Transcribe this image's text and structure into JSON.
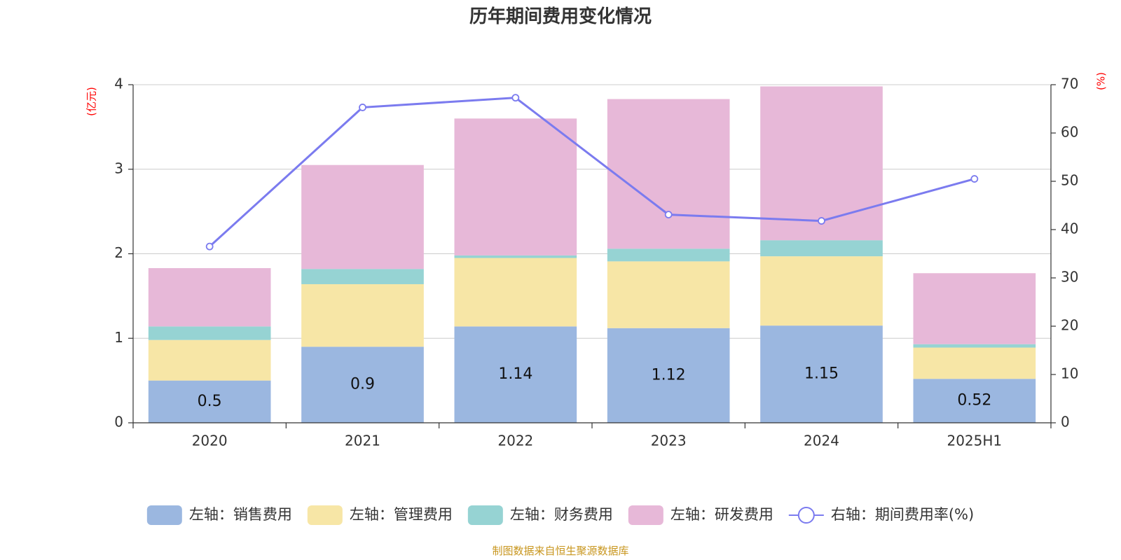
{
  "chart_data": {
    "type": "bar",
    "title": "历年期间费用变化情况",
    "left_unit": "(亿元)",
    "right_unit": "(%)",
    "categories": [
      "2020",
      "2021",
      "2022",
      "2023",
      "2024",
      "2025H1"
    ],
    "left_axis": {
      "ylim": [
        0,
        4
      ],
      "ticks": [
        "0",
        "1",
        "2",
        "3",
        "4"
      ]
    },
    "right_axis": {
      "ylim": [
        0,
        70
      ],
      "ticks": [
        "0",
        "10",
        "20",
        "30",
        "40",
        "50",
        "60",
        "70"
      ]
    },
    "grid": true,
    "legend_position": "bottom",
    "series": [
      {
        "name": "左轴：销售费用",
        "type": "bar",
        "stack": true,
        "axis": "left",
        "color": "#9bb7e0",
        "values": [
          0.5,
          0.9,
          1.14,
          1.12,
          1.15,
          0.52
        ],
        "labels": [
          "0.5",
          "0.9",
          "1.14",
          "1.12",
          "1.15",
          "0.52"
        ]
      },
      {
        "name": "左轴：管理费用",
        "type": "bar",
        "stack": true,
        "axis": "left",
        "color": "#f7e6a6",
        "values": [
          0.48,
          0.74,
          0.81,
          0.79,
          0.82,
          0.37
        ]
      },
      {
        "name": "左轴：财务费用",
        "type": "bar",
        "stack": true,
        "axis": "left",
        "color": "#96d3d3",
        "values": [
          0.16,
          0.18,
          0.03,
          0.15,
          0.19,
          0.04
        ]
      },
      {
        "name": "左轴：研发费用",
        "type": "bar",
        "stack": true,
        "axis": "left",
        "color": "#e7b8d8",
        "values": [
          0.69,
          1.23,
          1.62,
          1.77,
          1.82,
          0.84
        ]
      },
      {
        "name": "右轴：期间费用率(%)",
        "type": "line",
        "axis": "right",
        "color": "#7b7bef",
        "values": [
          36.5,
          65.3,
          67.3,
          43.1,
          41.8,
          50.5
        ]
      }
    ],
    "source": "制图数据来自恒生聚源数据库",
    "colors": {
      "unit_label": "#ff0000",
      "source": "#c8961e",
      "axis": "#333333",
      "grid": "#cccccc"
    }
  }
}
